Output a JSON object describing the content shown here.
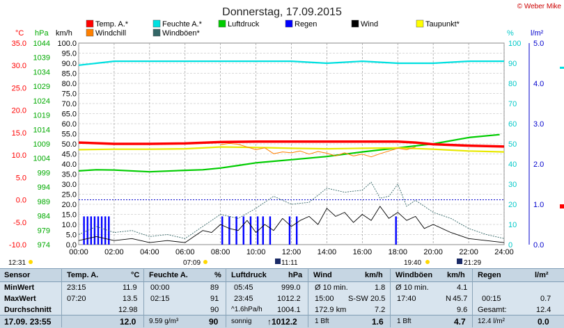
{
  "title": "Donnerstag, 17.09.2015",
  "copyright": "© Weber Mike",
  "legend": [
    {
      "label": "Temp. A.*",
      "color": "#ff0000"
    },
    {
      "label": "Feuchte A.*",
      "color": "#00e0e0"
    },
    {
      "label": "Luftdruck",
      "color": "#00cc00"
    },
    {
      "label": "Regen",
      "color": "#0000ff"
    },
    {
      "label": "Wind",
      "color": "#000000"
    },
    {
      "label": "Taupunkt*",
      "color": "#ffff00"
    },
    {
      "label": "Windchill",
      "color": "#ff8000"
    },
    {
      "label": "Windböen*",
      "color": "#336666"
    }
  ],
  "axis_units": {
    "temp": "°C",
    "press": "hPa",
    "wind": "km/h",
    "hum": "%",
    "rain": "l/m²"
  },
  "events": {
    "sunrise": "07:09",
    "moonset": "11:11",
    "sunset": "19:40",
    "moonrise": "21:29",
    "left": "12:31"
  },
  "chart_data": {
    "type": "line",
    "x_ticks": [
      "00:00",
      "02:00",
      "04:00",
      "06:00",
      "08:00",
      "10:00",
      "12:00",
      "14:00",
      "16:00",
      "18:00",
      "20:00",
      "22:00",
      "24:00"
    ],
    "temp_axis": {
      "range": [
        -10,
        35
      ],
      "ticks": [
        "35.0",
        "30.0",
        "25.0",
        "20.0",
        "15.0",
        "10.0",
        "5.0",
        "0.0",
        "-5.0",
        "-10.0"
      ]
    },
    "press_axis": {
      "range": [
        974,
        1044
      ],
      "ticks": [
        "1044",
        "1039",
        "1034",
        "1029",
        "1024",
        "1019",
        "1014",
        "1009",
        "1004",
        "999",
        "994",
        "989",
        "984",
        "979",
        "974"
      ]
    },
    "wind_axis": {
      "range": [
        0,
        100
      ],
      "ticks": [
        "100.0",
        "95.0",
        "90.0",
        "85.0",
        "80.0",
        "75.0",
        "70.0",
        "65.0",
        "60.0",
        "55.0",
        "50.0",
        "45.0",
        "40.0",
        "35.0",
        "30.0",
        "25.0",
        "20.0",
        "15.0",
        "10.0",
        "5.0",
        "0.0"
      ]
    },
    "hum_axis": {
      "range": [
        0,
        100
      ],
      "ticks": [
        "100",
        "90",
        "80",
        "70",
        "60",
        "50",
        "40",
        "30",
        "20",
        "10",
        "0"
      ]
    },
    "rain_axis": {
      "range": [
        0,
        5
      ],
      "ticks": [
        "5.0",
        "4.0",
        "3.0",
        "2.0",
        "1.0",
        "0.0"
      ]
    },
    "series": [
      {
        "name": "Temp. A.*",
        "axis": "temp",
        "x": [
          0,
          2,
          4,
          6,
          8,
          10,
          12,
          14,
          16,
          18,
          19,
          20,
          22,
          24
        ],
        "y": [
          12.8,
          12.5,
          12.5,
          12.6,
          12.9,
          13.0,
          13.0,
          13.0,
          13.0,
          13.0,
          12.8,
          12.4,
          12.1,
          11.9
        ]
      },
      {
        "name": "Feuchte A.*",
        "axis": "hum",
        "x": [
          0,
          1,
          2,
          4,
          6,
          8,
          10,
          12,
          14,
          16,
          18,
          19,
          20,
          22,
          24
        ],
        "y": [
          89,
          90,
          91,
          91,
          91,
          91,
          91,
          91,
          90,
          91,
          90,
          90,
          90,
          91,
          91
        ]
      },
      {
        "name": "Luftdruck",
        "axis": "press",
        "x": [
          0,
          1,
          2,
          4,
          6,
          7,
          8,
          9,
          10,
          12,
          14,
          16,
          18,
          20,
          22,
          23.75
        ],
        "y": [
          999.6,
          1000.0,
          999.9,
          999.3,
          999.8,
          1000.0,
          1000.6,
          1001.5,
          1002.4,
          1003.5,
          1004.6,
          1006.2,
          1007.6,
          1009.0,
          1011.2,
          1012.2
        ]
      },
      {
        "name": "Taupunkt*",
        "axis": "temp",
        "x": [
          0,
          2,
          4,
          6,
          8,
          10,
          12,
          14,
          16,
          18,
          20,
          22,
          24
        ],
        "y": [
          11.2,
          11.3,
          11.3,
          11.4,
          11.8,
          11.7,
          11.5,
          11.4,
          11.5,
          11.6,
          11.3,
          10.9,
          10.7
        ]
      },
      {
        "name": "Windchill",
        "axis": "temp",
        "x": [
          8,
          8.5,
          9,
          9.5,
          10,
          10.5,
          11,
          11.5,
          12,
          12.5,
          13,
          13.5,
          14,
          14.5,
          15,
          15.5,
          16,
          16.5,
          17,
          17.5,
          18,
          18.5,
          19
        ],
        "y": [
          12.3,
          12.6,
          12.4,
          11.8,
          11.2,
          11.6,
          10.3,
          10.7,
          10.5,
          10.9,
          10.2,
          10.8,
          10.4,
          9.8,
          10.5,
          9.8,
          10.2,
          9.6,
          10.3,
          10.9,
          11.5,
          11.2,
          11.8
        ]
      },
      {
        "name": "Wind",
        "axis": "wind",
        "x": [
          0,
          1,
          2,
          3,
          4,
          5,
          6,
          6.5,
          7,
          7.5,
          8,
          8.5,
          9,
          9.5,
          10,
          10.5,
          11,
          11.5,
          12,
          12.5,
          13,
          13.5,
          14,
          14.5,
          15,
          15.5,
          16,
          16.5,
          17,
          17.5,
          18,
          18.5,
          19,
          19.5,
          20,
          21,
          22,
          23,
          24
        ],
        "y": [
          2,
          4,
          2,
          3,
          1,
          2,
          1,
          4,
          7,
          6,
          10,
          8,
          7,
          12,
          6,
          10,
          7,
          13,
          9,
          12,
          14,
          10,
          18,
          14,
          16,
          11,
          15,
          12,
          19,
          13,
          16,
          12,
          14,
          8,
          10,
          6,
          3,
          2,
          1
        ]
      },
      {
        "name": "Windböen*",
        "axis": "wind",
        "x": [
          0,
          1,
          2,
          3,
          4,
          5,
          6,
          7,
          8,
          9,
          10,
          11,
          12,
          13,
          14,
          15,
          16,
          16.5,
          17,
          17.5,
          18,
          18.5,
          19,
          20,
          21,
          22,
          23,
          24
        ],
        "y": [
          5,
          9,
          6,
          7,
          4,
          5,
          3,
          9,
          15,
          13,
          18,
          24,
          20,
          21,
          28,
          26,
          27,
          31,
          23,
          24,
          30,
          19,
          22,
          16,
          13,
          8,
          5,
          3
        ]
      }
    ],
    "rain": {
      "axis": "rain",
      "x": [
        0.3,
        0.5,
        0.7,
        0.9,
        1.1,
        1.3,
        1.5,
        1.7,
        8.1,
        8.5,
        8.9,
        9.3,
        9.7,
        10.1,
        10.4,
        10.8,
        11.9,
        12.3,
        17.9
      ],
      "y": [
        0.7,
        0.7,
        0.7,
        0.7,
        0.7,
        0.7,
        0.7,
        0.7,
        0.7,
        0.7,
        0.7,
        0.7,
        0.7,
        0.7,
        0.7,
        0.7,
        0.7,
        0.7,
        0.7
      ]
    },
    "freeze_level_y": 0
  },
  "table": {
    "headers": [
      "Sensor",
      "Temp. A.",
      "°C",
      "Feuchte A.",
      "%",
      "Luftdruck",
      "hPa",
      "Wind",
      "km/h",
      "Windböen",
      "km/h",
      "Regen",
      "l/m²"
    ],
    "row_labels": [
      "MinWert",
      "MaxWert",
      "Durchschnitt"
    ],
    "temp": {
      "min_time": "23:15",
      "min": "11.9",
      "max_time": "07:20",
      "max": "13.5",
      "avg": "12.98",
      "now": "12.0"
    },
    "hum": {
      "min_time": "00:00",
      "min": "89",
      "max_time": "02:15",
      "max": "91",
      "avg": "90",
      "extra": "9.59 g/m³",
      "now": "90"
    },
    "press": {
      "min_time": "05:45",
      "min": "999.0",
      "max_time": "23:45",
      "max": "1012.2",
      "trend": "^1.6hPa/h",
      "avg": "1004.1",
      "state": "sonnig",
      "now": "↑1012.2"
    },
    "wind": {
      "r1": "Ø 10 min.",
      "r1v": "1.8",
      "r2": "15:00",
      "r2d": "S-SW",
      "r2v": "20.5",
      "r3": "172.9 km",
      "r3v": "7.2",
      "now_l": "1 Bft",
      "now": "1.6"
    },
    "gust": {
      "r1": "Ø 10 min.",
      "r1v": "4.1",
      "r2": "17:40",
      "r2d": "N",
      "r2v": "45.7",
      "r3v": "9.6",
      "now_l": "1 Bft",
      "now": "4.7"
    },
    "rain": {
      "r2": "00:15",
      "r2v": "0.7",
      "r3": "Gesamt:",
      "r3v": "12.4",
      "now_l": "12.4 l/m²",
      "now": "0.0"
    },
    "timestamp": "17.09. 23:55"
  }
}
